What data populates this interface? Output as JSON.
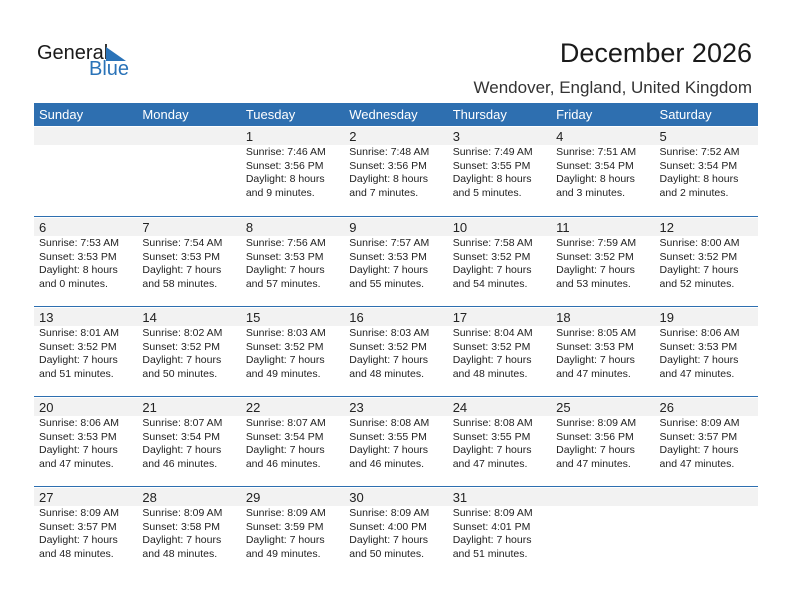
{
  "logo": {
    "line1": "General",
    "line2": "Blue"
  },
  "title": "December 2026",
  "location": "Wendover, England, United Kingdom",
  "weekdays": [
    "Sunday",
    "Monday",
    "Tuesday",
    "Wednesday",
    "Thursday",
    "Friday",
    "Saturday"
  ],
  "weeks": [
    [
      null,
      null,
      {
        "day": "1",
        "sunrise": "Sunrise: 7:46 AM",
        "sunset": "Sunset: 3:56 PM",
        "daylight1": "Daylight: 8 hours",
        "daylight2": "and 9 minutes."
      },
      {
        "day": "2",
        "sunrise": "Sunrise: 7:48 AM",
        "sunset": "Sunset: 3:56 PM",
        "daylight1": "Daylight: 8 hours",
        "daylight2": "and 7 minutes."
      },
      {
        "day": "3",
        "sunrise": "Sunrise: 7:49 AM",
        "sunset": "Sunset: 3:55 PM",
        "daylight1": "Daylight: 8 hours",
        "daylight2": "and 5 minutes."
      },
      {
        "day": "4",
        "sunrise": "Sunrise: 7:51 AM",
        "sunset": "Sunset: 3:54 PM",
        "daylight1": "Daylight: 8 hours",
        "daylight2": "and 3 minutes."
      },
      {
        "day": "5",
        "sunrise": "Sunrise: 7:52 AM",
        "sunset": "Sunset: 3:54 PM",
        "daylight1": "Daylight: 8 hours",
        "daylight2": "and 2 minutes."
      }
    ],
    [
      {
        "day": "6",
        "sunrise": "Sunrise: 7:53 AM",
        "sunset": "Sunset: 3:53 PM",
        "daylight1": "Daylight: 8 hours",
        "daylight2": "and 0 minutes."
      },
      {
        "day": "7",
        "sunrise": "Sunrise: 7:54 AM",
        "sunset": "Sunset: 3:53 PM",
        "daylight1": "Daylight: 7 hours",
        "daylight2": "and 58 minutes."
      },
      {
        "day": "8",
        "sunrise": "Sunrise: 7:56 AM",
        "sunset": "Sunset: 3:53 PM",
        "daylight1": "Daylight: 7 hours",
        "daylight2": "and 57 minutes."
      },
      {
        "day": "9",
        "sunrise": "Sunrise: 7:57 AM",
        "sunset": "Sunset: 3:53 PM",
        "daylight1": "Daylight: 7 hours",
        "daylight2": "and 55 minutes."
      },
      {
        "day": "10",
        "sunrise": "Sunrise: 7:58 AM",
        "sunset": "Sunset: 3:52 PM",
        "daylight1": "Daylight: 7 hours",
        "daylight2": "and 54 minutes."
      },
      {
        "day": "11",
        "sunrise": "Sunrise: 7:59 AM",
        "sunset": "Sunset: 3:52 PM",
        "daylight1": "Daylight: 7 hours",
        "daylight2": "and 53 minutes."
      },
      {
        "day": "12",
        "sunrise": "Sunrise: 8:00 AM",
        "sunset": "Sunset: 3:52 PM",
        "daylight1": "Daylight: 7 hours",
        "daylight2": "and 52 minutes."
      }
    ],
    [
      {
        "day": "13",
        "sunrise": "Sunrise: 8:01 AM",
        "sunset": "Sunset: 3:52 PM",
        "daylight1": "Daylight: 7 hours",
        "daylight2": "and 51 minutes."
      },
      {
        "day": "14",
        "sunrise": "Sunrise: 8:02 AM",
        "sunset": "Sunset: 3:52 PM",
        "daylight1": "Daylight: 7 hours",
        "daylight2": "and 50 minutes."
      },
      {
        "day": "15",
        "sunrise": "Sunrise: 8:03 AM",
        "sunset": "Sunset: 3:52 PM",
        "daylight1": "Daylight: 7 hours",
        "daylight2": "and 49 minutes."
      },
      {
        "day": "16",
        "sunrise": "Sunrise: 8:03 AM",
        "sunset": "Sunset: 3:52 PM",
        "daylight1": "Daylight: 7 hours",
        "daylight2": "and 48 minutes."
      },
      {
        "day": "17",
        "sunrise": "Sunrise: 8:04 AM",
        "sunset": "Sunset: 3:52 PM",
        "daylight1": "Daylight: 7 hours",
        "daylight2": "and 48 minutes."
      },
      {
        "day": "18",
        "sunrise": "Sunrise: 8:05 AM",
        "sunset": "Sunset: 3:53 PM",
        "daylight1": "Daylight: 7 hours",
        "daylight2": "and 47 minutes."
      },
      {
        "day": "19",
        "sunrise": "Sunrise: 8:06 AM",
        "sunset": "Sunset: 3:53 PM",
        "daylight1": "Daylight: 7 hours",
        "daylight2": "and 47 minutes."
      }
    ],
    [
      {
        "day": "20",
        "sunrise": "Sunrise: 8:06 AM",
        "sunset": "Sunset: 3:53 PM",
        "daylight1": "Daylight: 7 hours",
        "daylight2": "and 47 minutes."
      },
      {
        "day": "21",
        "sunrise": "Sunrise: 8:07 AM",
        "sunset": "Sunset: 3:54 PM",
        "daylight1": "Daylight: 7 hours",
        "daylight2": "and 46 minutes."
      },
      {
        "day": "22",
        "sunrise": "Sunrise: 8:07 AM",
        "sunset": "Sunset: 3:54 PM",
        "daylight1": "Daylight: 7 hours",
        "daylight2": "and 46 minutes."
      },
      {
        "day": "23",
        "sunrise": "Sunrise: 8:08 AM",
        "sunset": "Sunset: 3:55 PM",
        "daylight1": "Daylight: 7 hours",
        "daylight2": "and 46 minutes."
      },
      {
        "day": "24",
        "sunrise": "Sunrise: 8:08 AM",
        "sunset": "Sunset: 3:55 PM",
        "daylight1": "Daylight: 7 hours",
        "daylight2": "and 47 minutes."
      },
      {
        "day": "25",
        "sunrise": "Sunrise: 8:09 AM",
        "sunset": "Sunset: 3:56 PM",
        "daylight1": "Daylight: 7 hours",
        "daylight2": "and 47 minutes."
      },
      {
        "day": "26",
        "sunrise": "Sunrise: 8:09 AM",
        "sunset": "Sunset: 3:57 PM",
        "daylight1": "Daylight: 7 hours",
        "daylight2": "and 47 minutes."
      }
    ],
    [
      {
        "day": "27",
        "sunrise": "Sunrise: 8:09 AM",
        "sunset": "Sunset: 3:57 PM",
        "daylight1": "Daylight: 7 hours",
        "daylight2": "and 48 minutes."
      },
      {
        "day": "28",
        "sunrise": "Sunrise: 8:09 AM",
        "sunset": "Sunset: 3:58 PM",
        "daylight1": "Daylight: 7 hours",
        "daylight2": "and 48 minutes."
      },
      {
        "day": "29",
        "sunrise": "Sunrise: 8:09 AM",
        "sunset": "Sunset: 3:59 PM",
        "daylight1": "Daylight: 7 hours",
        "daylight2": "and 49 minutes."
      },
      {
        "day": "30",
        "sunrise": "Sunrise: 8:09 AM",
        "sunset": "Sunset: 4:00 PM",
        "daylight1": "Daylight: 7 hours",
        "daylight2": "and 50 minutes."
      },
      {
        "day": "31",
        "sunrise": "Sunrise: 8:09 AM",
        "sunset": "Sunset: 4:01 PM",
        "daylight1": "Daylight: 7 hours",
        "daylight2": "and 51 minutes."
      },
      null,
      null
    ]
  ]
}
